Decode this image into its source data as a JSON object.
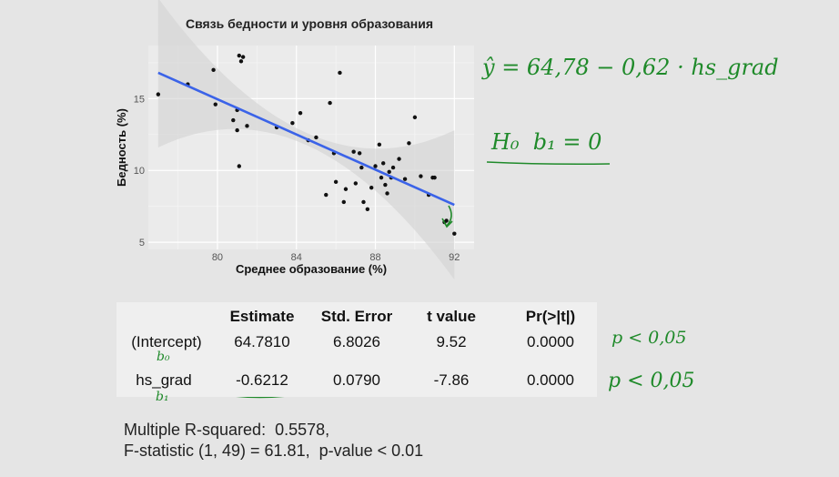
{
  "chart_data": {
    "type": "scatter",
    "title": "Связь бедности и уровня образования",
    "xlabel": "Среднее образование (%)",
    "ylabel": "Бедность (%)",
    "xlim": [
      76.5,
      93
    ],
    "ylim": [
      4.5,
      18.7
    ],
    "xticks": [
      "80",
      "84",
      "88",
      "92"
    ],
    "yticks": [
      "5",
      "10",
      "15"
    ],
    "fit_line": {
      "x": [
        77,
        92
      ],
      "y": [
        16.8,
        7.6
      ],
      "color": "#3b63e8"
    },
    "series": [
      {
        "x": [
          77.0,
          78.5,
          79.8,
          79.9,
          80.8,
          81.0,
          81.0,
          81.2,
          81.5,
          81.1,
          81.3,
          83.0,
          83.8,
          84.2,
          84.6,
          85.0,
          85.5,
          85.7,
          85.9,
          86.0,
          86.2,
          86.4,
          86.5,
          86.9,
          87.0,
          87.2,
          87.3,
          87.4,
          87.6,
          87.8,
          88.0,
          88.2,
          88.3,
          88.4,
          88.5,
          88.6,
          88.7,
          88.8,
          88.9,
          89.2,
          89.5,
          89.7,
          90.0,
          90.3,
          90.7,
          90.9,
          91.0,
          91.6,
          92.0,
          91.5,
          81.1
        ],
        "y": [
          15.3,
          16.0,
          17.0,
          14.6,
          13.5,
          14.2,
          12.8,
          17.6,
          13.1,
          10.3,
          17.9,
          13.0,
          13.3,
          14.0,
          12.1,
          12.3,
          8.3,
          14.7,
          11.2,
          9.2,
          16.8,
          7.8,
          8.7,
          11.3,
          9.1,
          11.2,
          10.2,
          7.8,
          7.3,
          8.8,
          10.3,
          11.8,
          9.5,
          10.5,
          9.0,
          8.4,
          9.9,
          9.5,
          10.2,
          10.8,
          9.4,
          11.9,
          13.7,
          9.6,
          8.3,
          9.5,
          9.5,
          6.5,
          5.6,
          6.4,
          18.0
        ],
        "color": "#111111"
      }
    ]
  },
  "regression_table": {
    "headers": [
      "Estimate",
      "Std. Error",
      "t value",
      "Pr(>|t|)"
    ],
    "rows": [
      {
        "term": "(Intercept)",
        "estimate": "64.7810",
        "std_error": "6.8026",
        "t_value": "9.52",
        "p_value": "0.0000"
      },
      {
        "term": "hs_grad",
        "estimate": "-0.6212",
        "std_error": "0.0790",
        "t_value": "-7.86",
        "p_value": "0.0000"
      }
    ]
  },
  "summary": {
    "r_squared": "Multiple R-squared:  0.5578,",
    "f_stat": "F-statistic (1, 49) = 61.81,  p-value < 0.01"
  },
  "annotations": {
    "equation": "ŷ = 64,78 − 0,62 · hs_grad",
    "hypothesis": "H₀  b₁ = 0",
    "p_note_1": "p < 0,05",
    "p_note_2": "p < 0,05",
    "b0_label": "b₀",
    "b1_label": "b₁",
    "ink_color": "#1f8a2a"
  }
}
